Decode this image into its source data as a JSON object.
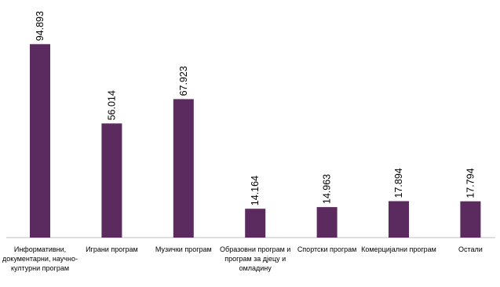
{
  "chart_data": {
    "type": "bar",
    "title": "",
    "xlabel": "",
    "ylabel": "",
    "ylim": [
      0,
      100
    ],
    "grid": false,
    "legend": "none",
    "bar_color": "#5b2b5f",
    "categories": [
      "Информативни, документарни, научно-културни програм",
      "Играни програм",
      "Музички програм",
      "Образовни програм и програм за дјецу и омладину",
      "Спортски програм",
      "Комерцијални програм",
      "Остали"
    ],
    "values": [
      94.893,
      56.014,
      67.923,
      14.164,
      14.963,
      17.894,
      17.794
    ],
    "value_labels": [
      "94.893",
      "56.014",
      "67.923",
      "14.164",
      "14.963",
      "17.894",
      "17.794"
    ]
  }
}
